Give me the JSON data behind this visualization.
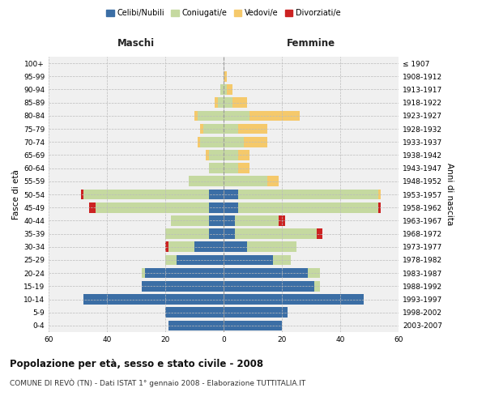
{
  "age_groups": [
    "0-4",
    "5-9",
    "10-14",
    "15-19",
    "20-24",
    "25-29",
    "30-34",
    "35-39",
    "40-44",
    "45-49",
    "50-54",
    "55-59",
    "60-64",
    "65-69",
    "70-74",
    "75-79",
    "80-84",
    "85-89",
    "90-94",
    "95-99",
    "100+"
  ],
  "birth_years": [
    "2003-2007",
    "1998-2002",
    "1993-1997",
    "1988-1992",
    "1983-1987",
    "1978-1982",
    "1973-1977",
    "1968-1972",
    "1963-1967",
    "1958-1962",
    "1953-1957",
    "1948-1952",
    "1943-1947",
    "1938-1942",
    "1933-1937",
    "1928-1932",
    "1923-1927",
    "1918-1922",
    "1913-1917",
    "1908-1912",
    "≤ 1907"
  ],
  "male": {
    "celibi": [
      19,
      20,
      48,
      28,
      27,
      16,
      10,
      5,
      5,
      5,
      5,
      0,
      0,
      0,
      0,
      0,
      0,
      0,
      0,
      0,
      0
    ],
    "coniugati": [
      0,
      0,
      0,
      0,
      1,
      4,
      9,
      15,
      13,
      39,
      43,
      12,
      5,
      5,
      8,
      7,
      9,
      2,
      1,
      0,
      0
    ],
    "vedovi": [
      0,
      0,
      0,
      0,
      0,
      0,
      0,
      0,
      0,
      0,
      0,
      0,
      0,
      1,
      1,
      1,
      1,
      1,
      0,
      0,
      0
    ],
    "divorziati": [
      0,
      0,
      0,
      0,
      0,
      0,
      1,
      0,
      0,
      2,
      1,
      0,
      0,
      0,
      0,
      0,
      0,
      0,
      0,
      0,
      0
    ]
  },
  "female": {
    "nubili": [
      20,
      22,
      48,
      31,
      29,
      17,
      8,
      4,
      4,
      5,
      5,
      0,
      0,
      0,
      0,
      0,
      0,
      0,
      0,
      0,
      0
    ],
    "coniugate": [
      0,
      0,
      0,
      2,
      4,
      6,
      17,
      28,
      15,
      48,
      48,
      15,
      5,
      5,
      7,
      5,
      9,
      3,
      1,
      0,
      0
    ],
    "vedove": [
      0,
      0,
      0,
      0,
      0,
      0,
      0,
      0,
      0,
      0,
      1,
      4,
      4,
      4,
      8,
      10,
      17,
      5,
      2,
      1,
      0
    ],
    "divorziate": [
      0,
      0,
      0,
      0,
      0,
      0,
      0,
      2,
      2,
      1,
      0,
      0,
      0,
      0,
      0,
      0,
      0,
      0,
      0,
      0,
      0
    ]
  },
  "colors": {
    "celibi": "#3b6ea5",
    "coniugati": "#c5d9a0",
    "vedovi": "#f5c96b",
    "divorziati": "#cc2222"
  },
  "xlim": 60,
  "title": "Popolazione per età, sesso e stato civile - 2008",
  "subtitle": "COMUNE DI REVÒ (TN) - Dati ISTAT 1° gennaio 2008 - Elaborazione TUTTITALIA.IT",
  "xlabel_left": "Maschi",
  "xlabel_right": "Femmine",
  "ylabel_left": "Fasce di età",
  "ylabel_right": "Anni di nascita",
  "legend_labels": [
    "Celibi/Nubili",
    "Coniugati/e",
    "Vedovi/e",
    "Divorziati/e"
  ],
  "bg_color": "#f0f0f0",
  "grid_color": "#bbbbbb"
}
